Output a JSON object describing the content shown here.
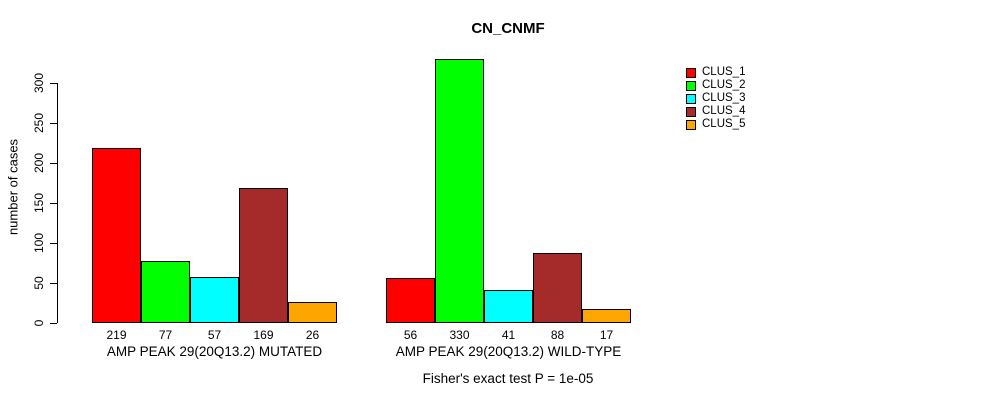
{
  "chart_data": {
    "type": "bar",
    "title": "CN_CNMF",
    "ylabel": "number of cases",
    "xlabel": "",
    "ylim": [
      0,
      300
    ],
    "yticks": [
      0,
      50,
      100,
      150,
      200,
      250,
      300
    ],
    "grid": false,
    "legend_position": "right-outside",
    "categories": [
      "AMP PEAK 29(20Q13.2) MUTATED",
      "AMP PEAK 29(20Q13.2) WILD-TYPE"
    ],
    "series": [
      {
        "name": "CLUS_1",
        "color": "#FF0000",
        "values": [
          219,
          56
        ]
      },
      {
        "name": "CLUS_2",
        "color": "#00FF00",
        "values": [
          77,
          330
        ]
      },
      {
        "name": "CLUS_3",
        "color": "#00FFFF",
        "values": [
          57,
          41
        ]
      },
      {
        "name": "CLUS_4",
        "color": "#A52A2A",
        "values": [
          169,
          88
        ]
      },
      {
        "name": "CLUS_5",
        "color": "#FFA500",
        "values": [
          26,
          17
        ]
      }
    ],
    "bar_value_labels": [
      [
        219,
        77,
        57,
        169,
        26
      ],
      [
        56,
        330,
        41,
        88,
        17
      ]
    ],
    "footnote": "Fisher's exact test P = 1e-05"
  },
  "colors": {
    "background": "#FFFFFF",
    "text": "#000000",
    "bar_border": "#000000"
  }
}
